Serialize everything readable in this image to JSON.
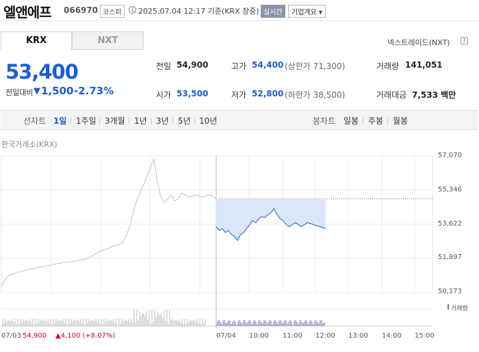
{
  "header": {
    "name": "엘앤에프",
    "code": "066970",
    "market": "코스피",
    "datetime": "2025.07.04 12:17 기준(KRX 장중)",
    "live_badge": "실시간",
    "company_button": "기업개요 ▾"
  },
  "tabs": [
    {
      "label": "KRX",
      "active": true
    },
    {
      "label": "NXT",
      "active": false
    }
  ],
  "nxt_link": "넥스트레이드(NXT)",
  "price": {
    "current": "53,400",
    "change_label": "전일대비",
    "change_arrow": "▼",
    "change_value": "1,500",
    "change_rate": "-2.73%",
    "color": "#1a5ed6"
  },
  "stats": {
    "prev_close": {
      "label": "전일",
      "value": "54,900"
    },
    "open": {
      "label": "시가",
      "value": "53,500"
    },
    "high": {
      "label": "고가",
      "value": "54,400",
      "sub": "(상한가 71,300)"
    },
    "low": {
      "label": "저가",
      "value": "52,800",
      "sub": "(하한가 38,500)"
    },
    "volume": {
      "label": "거래량",
      "value": "141,051"
    },
    "amount": {
      "label": "거래대금",
      "value": "7,533 백만"
    }
  },
  "range": {
    "line_label": "선차트",
    "line_items": [
      "1일",
      "1주일",
      "3개월",
      "1년",
      "3년",
      "5년",
      "10년"
    ],
    "candle_label": "봉차트",
    "candle_items": [
      "일봉",
      "주봉",
      "월봉"
    ]
  },
  "chart_data": {
    "type": "line",
    "source_label": "한국거래소(KRX)",
    "y_ticks": [
      "57,070",
      "55,346",
      "53,622",
      "51,897",
      "50,173"
    ],
    "x_ticks": [
      "07/03",
      "07/04",
      "10:00",
      "11:00",
      "12:00",
      "13:00",
      "14:00",
      "15:00"
    ],
    "ylim": [
      50173,
      57070
    ],
    "reference_price": 54900,
    "volume_legend": "거래량",
    "prev_day_summary": {
      "price": "54,900",
      "change": "▲4,100 (+8.07%)"
    },
    "series": [
      {
        "day": "07/03",
        "color": "#c0c0c0",
        "values": [
          50500,
          50800,
          51000,
          51100,
          51150,
          51200,
          51250,
          51300,
          51350,
          51380,
          51400,
          51450,
          51500,
          51520,
          51550,
          51600,
          51620,
          51650,
          51700,
          51700,
          51720,
          51750,
          51780,
          51800,
          51850,
          51900,
          52000,
          52100,
          52200,
          52300,
          52350,
          52400,
          52500,
          52550,
          52600,
          52700,
          53000,
          53500,
          54200,
          54800,
          55200,
          55600,
          56000,
          56500,
          56900,
          55800,
          55000,
          54700,
          54900,
          55100,
          54800,
          54900,
          55200,
          55100,
          55000,
          55050,
          55100,
          55050,
          55000,
          55050,
          55100,
          55050,
          54900
        ]
      },
      {
        "day": "07/04",
        "color": "#3a74c8",
        "values": [
          53500,
          53300,
          53400,
          53200,
          53300,
          53100,
          53000,
          52800,
          53100,
          53200,
          53400,
          53600,
          53800,
          53700,
          53900,
          54000,
          53950,
          54100,
          54200,
          54400,
          54100,
          53900,
          53800,
          53600,
          53500,
          53600,
          53700,
          53600,
          53500,
          53600,
          53700,
          53650,
          53600,
          53550,
          53500,
          53450,
          53400
        ]
      }
    ]
  }
}
